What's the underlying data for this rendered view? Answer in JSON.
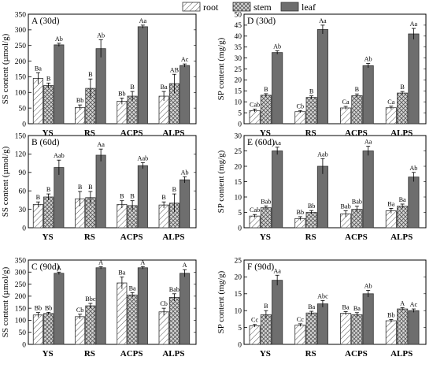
{
  "legend": {
    "items": [
      {
        "name": "root",
        "fill": "hatch"
      },
      {
        "name": "stem",
        "fill": "cross"
      },
      {
        "name": "leaf",
        "fill": "dark"
      }
    ]
  },
  "colors": {
    "root_face": "#ffffff",
    "stem_face": "#d8d8d8",
    "leaf_face": "#6e6e6e",
    "stroke": "#333333"
  },
  "chart_data": [
    {
      "id": "A",
      "type": "bar",
      "title": "A  (30d)",
      "ylabel": "SS content (µmol/g)",
      "categories": [
        "YS",
        "RS",
        "ACPS",
        "ALPS"
      ],
      "ylim": [
        0,
        350
      ],
      "yticks": [
        0,
        50,
        100,
        150,
        200,
        250,
        300,
        350
      ],
      "series": [
        {
          "name": "root",
          "values": [
            145,
            52,
            72,
            88
          ],
          "errors": [
            18,
            8,
            10,
            15
          ],
          "labels": [
            "Ba",
            "Bb",
            "Bb",
            "Ba"
          ]
        },
        {
          "name": "stem",
          "values": [
            122,
            113,
            88,
            128
          ],
          "errors": [
            8,
            30,
            15,
            30
          ],
          "labels": [
            "B",
            "B",
            "B",
            "AB"
          ]
        },
        {
          "name": "leaf",
          "values": [
            252,
            240,
            310,
            186
          ],
          "errors": [
            5,
            28,
            5,
            5
          ],
          "labels": [
            "Ab",
            "Ab",
            "Aa",
            "Ac"
          ]
        }
      ]
    },
    {
      "id": "D",
      "type": "bar",
      "title": "D  (30d)",
      "ylabel": "SP content (mg/g)",
      "categories": [
        "YS",
        "RS",
        "ACPS",
        "ALPS"
      ],
      "ylim": [
        0,
        50
      ],
      "yticks": [
        0,
        5,
        10,
        15,
        20,
        25,
        30,
        35,
        40,
        45,
        50
      ],
      "series": [
        {
          "name": "root",
          "values": [
            6,
            5.5,
            7.2,
            7.3
          ],
          "errors": [
            0.7,
            0.5,
            0.7,
            0.7
          ],
          "labels": [
            "Cab",
            "Cb",
            "Ca",
            "Ca"
          ]
        },
        {
          "name": "stem",
          "values": [
            13,
            12,
            12.8,
            14
          ],
          "errors": [
            0.7,
            0.7,
            0.8,
            0.7
          ],
          "labels": [
            "B",
            "B",
            "B",
            "B"
          ]
        },
        {
          "name": "leaf",
          "values": [
            32.5,
            43,
            26.5,
            41
          ],
          "errors": [
            0.8,
            2,
            1,
            2.5
          ],
          "labels": [
            "Ab",
            "Aa",
            "Ab",
            "Aa"
          ]
        }
      ]
    },
    {
      "id": "B",
      "type": "bar",
      "title": "B  (60d)",
      "ylabel": "SS content (µmol/g)",
      "categories": [
        "YS",
        "RS",
        "ACPS",
        "ALPS"
      ],
      "ylim": [
        0,
        150
      ],
      "yticks": [
        0,
        30,
        60,
        90,
        120,
        150
      ],
      "series": [
        {
          "name": "root",
          "values": [
            38,
            47,
            38,
            37
          ],
          "errors": [
            4,
            12,
            6,
            5
          ],
          "labels": [
            "B",
            "B",
            "B",
            "B"
          ]
        },
        {
          "name": "stem",
          "values": [
            50,
            49,
            36,
            40
          ],
          "errors": [
            5,
            10,
            8,
            15
          ],
          "labels": [
            "B",
            "B",
            "B",
            "B"
          ]
        },
        {
          "name": "leaf",
          "values": [
            98,
            118,
            101,
            78
          ],
          "errors": [
            12,
            10,
            5,
            5
          ],
          "labels": [
            "Aab",
            "Aa",
            "Aab",
            "Ab"
          ]
        }
      ]
    },
    {
      "id": "E",
      "type": "bar",
      "title": "E  (60d)",
      "ylabel": "SP content (mg/g)",
      "categories": [
        "YS",
        "RS",
        "ACPS",
        "ALPS"
      ],
      "ylim": [
        0,
        30
      ],
      "yticks": [
        0,
        5,
        10,
        15,
        20,
        25,
        30
      ],
      "series": [
        {
          "name": "root",
          "values": [
            3.8,
            3,
            4.5,
            5.5
          ],
          "errors": [
            0.5,
            0.6,
            1,
            0.8
          ],
          "labels": [
            "Cab",
            "Bb",
            "Bab",
            "Ba"
          ]
        },
        {
          "name": "stem",
          "values": [
            6.5,
            5,
            6,
            7
          ],
          "errors": [
            0.6,
            0.6,
            1,
            0.7
          ],
          "labels": [
            "Bab",
            "Bb",
            "Bab",
            "Ba"
          ]
        },
        {
          "name": "leaf",
          "values": [
            25,
            20,
            25,
            16.5
          ],
          "errors": [
            1.2,
            2.5,
            1.5,
            1.5
          ],
          "labels": [
            "Aa",
            "Aab",
            "Aa",
            "Ab"
          ]
        }
      ]
    },
    {
      "id": "C",
      "type": "bar",
      "title": "C  (90d)",
      "ylabel": "SS content (µmol/g)",
      "categories": [
        "YS",
        "RS",
        "ACPS",
        "ALPS"
      ],
      "ylim": [
        0,
        350
      ],
      "yticks": [
        0,
        50,
        100,
        150,
        200,
        250,
        300,
        350
      ],
      "series": [
        {
          "name": "root",
          "values": [
            122,
            115,
            255,
            135
          ],
          "errors": [
            10,
            10,
            25,
            15
          ],
          "labels": [
            "Bb",
            "Cb",
            "Ba",
            "Cb"
          ]
        },
        {
          "name": "stem",
          "values": [
            128,
            160,
            205,
            195
          ],
          "errors": [
            5,
            10,
            10,
            15
          ],
          "labels": [
            "Bb",
            "Bbc",
            "Ba",
            "Bab"
          ]
        },
        {
          "name": "leaf",
          "values": [
            295,
            318,
            318,
            295
          ],
          "errors": [
            5,
            5,
            5,
            15
          ],
          "labels": [
            "A",
            "A",
            "A",
            "A"
          ]
        }
      ]
    },
    {
      "id": "F",
      "type": "bar",
      "title": "F  (90d)",
      "ylabel": "SP content (mg/g)",
      "categories": [
        "YS",
        "RS",
        "ACPS",
        "ALPS"
      ],
      "ylim": [
        0,
        25
      ],
      "yticks": [
        0,
        5,
        10,
        15,
        20,
        25
      ],
      "series": [
        {
          "name": "root",
          "values": [
            5.5,
            5.7,
            9.2,
            7
          ],
          "errors": [
            0.4,
            0.4,
            0.5,
            0.4
          ],
          "labels": [
            "Cc",
            "Cc",
            "Ba",
            "Bb"
          ]
        },
        {
          "name": "stem",
          "values": [
            8.8,
            9.3,
            8.8,
            10.5
          ],
          "errors": [
            1.2,
            0.5,
            0.6,
            0.4
          ],
          "labels": [
            "B",
            "Ba",
            "Ba",
            "A"
          ]
        },
        {
          "name": "leaf",
          "values": [
            19,
            12,
            15,
            10
          ],
          "errors": [
            1.5,
            1,
            1,
            0.5
          ],
          "labels": [
            "Aa",
            "Abc",
            "Ab",
            "Ac"
          ]
        }
      ]
    }
  ]
}
